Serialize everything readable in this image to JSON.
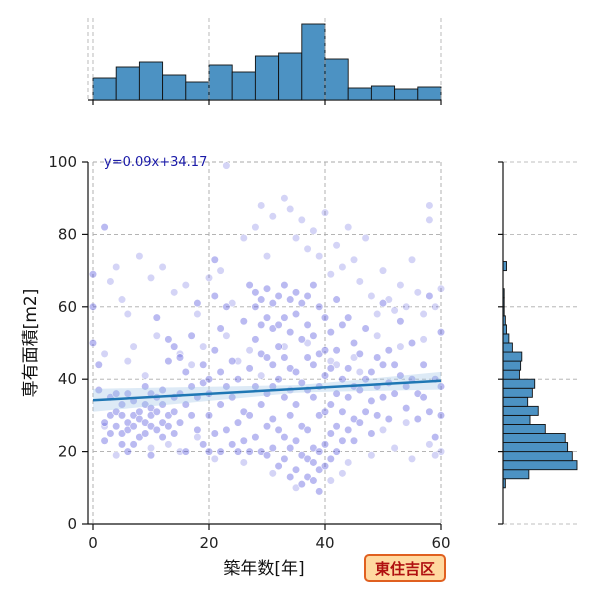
{
  "chart_data": {
    "type": "scatter",
    "xlabel": "築年数[年]",
    "ylabel": "専有面積[m2]",
    "xlim": [
      0,
      60
    ],
    "ylim": [
      0,
      100
    ],
    "xticks": [
      "0",
      "20",
      "40",
      "60"
    ],
    "yticks": [
      "0",
      "20",
      "40",
      "60",
      "80",
      "100"
    ],
    "grid": true,
    "regression": {
      "label": "y=0.09x+34.17",
      "slope": 0.09,
      "intercept": 34.17,
      "color": "#1f77b4"
    },
    "badge": "東住吉区",
    "colors": {
      "point": "#3a3ad6",
      "hist": "#4c92c3",
      "edge": "#111111",
      "badge_bg": "#ffd9a0",
      "badge_border": "#e06020"
    },
    "marginal_x_hist": {
      "bin_edges": [
        0,
        4,
        8,
        12,
        16,
        20,
        24,
        28,
        32,
        36,
        40,
        44,
        48,
        52,
        56,
        60
      ],
      "counts": [
        22,
        33,
        38,
        25,
        18,
        35,
        28,
        44,
        47,
        76,
        41,
        12,
        14,
        11,
        13
      ]
    },
    "marginal_y_hist": {
      "bin_edges": [
        10,
        12.5,
        15,
        17.5,
        20,
        22.5,
        25,
        27.5,
        30,
        32.5,
        35,
        37.5,
        40,
        42.5,
        45,
        47.5,
        50,
        52.5,
        55,
        57.5,
        60,
        62.5,
        65,
        67.5,
        70,
        72.5,
        75,
        77.5,
        80,
        82.5,
        85
      ],
      "counts": [
        2,
        22,
        63,
        59,
        55,
        53,
        36,
        23,
        30,
        21,
        25,
        27,
        14,
        15,
        16,
        8,
        5,
        3,
        2,
        1,
        1,
        1,
        0,
        0,
        3,
        0,
        0,
        0,
        0,
        0
      ]
    },
    "points": [
      [
        0,
        69
      ],
      [
        0,
        60
      ],
      [
        0,
        50
      ],
      [
        1,
        37
      ],
      [
        1,
        44
      ],
      [
        2,
        82
      ],
      [
        2,
        23
      ],
      [
        2,
        28
      ],
      [
        3,
        30
      ],
      [
        3,
        35
      ],
      [
        3,
        25
      ],
      [
        4,
        31
      ],
      [
        4,
        36
      ],
      [
        4,
        27
      ],
      [
        5,
        30
      ],
      [
        5,
        25
      ],
      [
        5,
        22
      ],
      [
        5,
        33
      ],
      [
        6,
        28
      ],
      [
        6,
        36
      ],
      [
        6,
        26
      ],
      [
        6,
        20
      ],
      [
        7,
        34
      ],
      [
        7,
        30
      ],
      [
        7,
        27
      ],
      [
        7,
        22
      ],
      [
        8,
        31
      ],
      [
        8,
        29
      ],
      [
        8,
        24
      ],
      [
        9,
        38
      ],
      [
        9,
        33
      ],
      [
        9,
        28
      ],
      [
        9,
        25
      ],
      [
        10,
        36
      ],
      [
        10,
        32
      ],
      [
        10,
        30
      ],
      [
        10,
        27
      ],
      [
        10,
        19
      ],
      [
        11,
        35
      ],
      [
        11,
        31
      ],
      [
        11,
        26
      ],
      [
        11,
        57
      ],
      [
        12,
        37
      ],
      [
        12,
        33
      ],
      [
        12,
        28
      ],
      [
        12,
        24
      ],
      [
        13,
        30
      ],
      [
        13,
        27
      ],
      [
        13,
        45
      ],
      [
        13,
        51
      ],
      [
        14,
        35
      ],
      [
        14,
        31
      ],
      [
        14,
        25
      ],
      [
        14,
        49
      ],
      [
        15,
        36
      ],
      [
        15,
        46
      ],
      [
        15,
        28
      ],
      [
        16,
        33
      ],
      [
        16,
        20
      ],
      [
        16,
        42
      ],
      [
        17,
        52
      ],
      [
        17,
        30
      ],
      [
        17,
        38
      ],
      [
        18,
        26
      ],
      [
        18,
        35
      ],
      [
        18,
        61
      ],
      [
        19,
        22
      ],
      [
        19,
        39
      ],
      [
        19,
        44
      ],
      [
        20,
        40
      ],
      [
        20,
        36
      ],
      [
        20,
        30
      ],
      [
        20,
        20
      ],
      [
        21,
        73
      ],
      [
        21,
        63
      ],
      [
        21,
        48
      ],
      [
        21,
        25
      ],
      [
        22,
        54
      ],
      [
        22,
        42
      ],
      [
        22,
        33
      ],
      [
        22,
        20
      ],
      [
        23,
        38
      ],
      [
        23,
        26
      ],
      [
        23,
        60
      ],
      [
        24,
        35
      ],
      [
        24,
        22
      ],
      [
        24,
        45
      ],
      [
        25,
        28
      ],
      [
        25,
        20
      ],
      [
        25,
        40
      ],
      [
        26,
        31
      ],
      [
        26,
        56
      ],
      [
        26,
        23
      ],
      [
        27,
        43
      ],
      [
        27,
        30
      ],
      [
        27,
        20
      ],
      [
        27,
        66
      ],
      [
        28,
        64
      ],
      [
        28,
        60
      ],
      [
        28,
        51
      ],
      [
        28,
        38
      ],
      [
        28,
        24
      ],
      [
        29,
        62
      ],
      [
        29,
        55
      ],
      [
        29,
        47
      ],
      [
        29,
        33
      ],
      [
        29,
        20
      ],
      [
        30,
        65
      ],
      [
        30,
        57
      ],
      [
        30,
        46
      ],
      [
        30,
        36
      ],
      [
        30,
        27
      ],
      [
        30,
        19
      ],
      [
        31,
        61
      ],
      [
        31,
        54
      ],
      [
        31,
        44
      ],
      [
        31,
        38
      ],
      [
        31,
        29
      ],
      [
        31,
        21
      ],
      [
        32,
        63
      ],
      [
        32,
        55
      ],
      [
        32,
        49
      ],
      [
        32,
        40
      ],
      [
        32,
        26
      ],
      [
        32,
        16
      ],
      [
        33,
        66
      ],
      [
        33,
        57
      ],
      [
        33,
        46
      ],
      [
        33,
        35
      ],
      [
        33,
        24
      ],
      [
        33,
        18
      ],
      [
        34,
        62
      ],
      [
        34,
        53
      ],
      [
        34,
        43
      ],
      [
        34,
        30
      ],
      [
        34,
        21
      ],
      [
        34,
        13
      ],
      [
        35,
        64
      ],
      [
        35,
        58
      ],
      [
        35,
        42
      ],
      [
        35,
        33
      ],
      [
        35,
        23
      ],
      [
        35,
        15
      ],
      [
        36,
        61
      ],
      [
        36,
        51
      ],
      [
        36,
        39
      ],
      [
        36,
        27
      ],
      [
        36,
        19
      ],
      [
        36,
        11
      ],
      [
        37,
        63
      ],
      [
        37,
        55
      ],
      [
        37,
        46
      ],
      [
        37,
        37
      ],
      [
        37,
        26
      ],
      [
        37,
        18
      ],
      [
        37,
        13
      ],
      [
        38,
        66
      ],
      [
        38,
        52
      ],
      [
        38,
        44
      ],
      [
        38,
        35
      ],
      [
        38,
        21
      ],
      [
        38,
        17
      ],
      [
        38,
        12
      ],
      [
        39,
        60
      ],
      [
        39,
        47
      ],
      [
        39,
        38
      ],
      [
        39,
        30
      ],
      [
        39,
        20
      ],
      [
        39,
        15
      ],
      [
        39,
        9
      ],
      [
        40,
        57
      ],
      [
        40,
        48
      ],
      [
        40,
        41
      ],
      [
        40,
        31
      ],
      [
        40,
        22
      ],
      [
        40,
        16
      ],
      [
        41,
        53
      ],
      [
        41,
        43
      ],
      [
        41,
        33
      ],
      [
        41,
        25
      ],
      [
        41,
        18
      ],
      [
        42,
        62
      ],
      [
        42,
        48
      ],
      [
        42,
        36
      ],
      [
        42,
        27
      ],
      [
        42,
        20
      ],
      [
        43,
        55
      ],
      [
        43,
        40
      ],
      [
        43,
        31
      ],
      [
        43,
        23
      ],
      [
        44,
        57
      ],
      [
        44,
        43
      ],
      [
        44,
        35
      ],
      [
        44,
        26
      ],
      [
        45,
        50
      ],
      [
        45,
        38
      ],
      [
        45,
        29
      ],
      [
        45,
        23
      ],
      [
        46,
        47
      ],
      [
        46,
        37
      ],
      [
        46,
        28
      ],
      [
        47,
        54
      ],
      [
        47,
        40
      ],
      [
        47,
        31
      ],
      [
        48,
        42
      ],
      [
        48,
        34
      ],
      [
        48,
        25
      ],
      [
        49,
        46
      ],
      [
        49,
        38
      ],
      [
        49,
        30
      ],
      [
        50,
        61
      ],
      [
        50,
        44
      ],
      [
        50,
        35
      ],
      [
        51,
        48
      ],
      [
        51,
        39
      ],
      [
        51,
        29
      ],
      [
        52,
        44
      ],
      [
        52,
        36
      ],
      [
        53,
        56
      ],
      [
        53,
        41
      ],
      [
        54,
        38
      ],
      [
        54,
        32
      ],
      [
        55,
        50
      ],
      [
        55,
        40
      ],
      [
        56,
        36
      ],
      [
        56,
        29
      ],
      [
        57,
        44
      ],
      [
        57,
        35
      ],
      [
        58,
        63
      ],
      [
        58,
        31
      ],
      [
        59,
        40
      ],
      [
        59,
        24
      ],
      [
        60,
        53
      ],
      [
        60,
        38
      ],
      [
        60,
        30
      ]
    ],
    "faint_points": [
      [
        3,
        67
      ],
      [
        4,
        71
      ],
      [
        5,
        62
      ],
      [
        6,
        58
      ],
      [
        8,
        74
      ],
      [
        10,
        68
      ],
      [
        12,
        71
      ],
      [
        14,
        64
      ],
      [
        16,
        66
      ],
      [
        18,
        58
      ],
      [
        20,
        68
      ],
      [
        22,
        70
      ],
      [
        24,
        61
      ],
      [
        26,
        79
      ],
      [
        28,
        82
      ],
      [
        29,
        88
      ],
      [
        30,
        74
      ],
      [
        31,
        85
      ],
      [
        33,
        90
      ],
      [
        34,
        87
      ],
      [
        35,
        79
      ],
      [
        36,
        84
      ],
      [
        37,
        76
      ],
      [
        38,
        81
      ],
      [
        39,
        74
      ],
      [
        40,
        86
      ],
      [
        41,
        69
      ],
      [
        42,
        77
      ],
      [
        43,
        71
      ],
      [
        44,
        82
      ],
      [
        45,
        73
      ],
      [
        46,
        67
      ],
      [
        47,
        79
      ],
      [
        48,
        63
      ],
      [
        49,
        58
      ],
      [
        50,
        70
      ],
      [
        51,
        62
      ],
      [
        52,
        59
      ],
      [
        53,
        66
      ],
      [
        54,
        60
      ],
      [
        55,
        73
      ],
      [
        56,
        64
      ],
      [
        57,
        58
      ],
      [
        58,
        84
      ],
      [
        58,
        88
      ],
      [
        59,
        60
      ],
      [
        60,
        65
      ],
      [
        2,
        47
      ],
      [
        7,
        49
      ],
      [
        11,
        52
      ],
      [
        15,
        47
      ],
      [
        19,
        49
      ],
      [
        23,
        52
      ],
      [
        27,
        48
      ],
      [
        29,
        41
      ],
      [
        33,
        49
      ],
      [
        37,
        50
      ],
      [
        41,
        45
      ],
      [
        45,
        46
      ],
      [
        49,
        52
      ],
      [
        53,
        49
      ],
      [
        57,
        51
      ],
      [
        23,
        99
      ],
      [
        6,
        45
      ],
      [
        9,
        41
      ],
      [
        17,
        44
      ],
      [
        25,
        45
      ],
      [
        34,
        37
      ],
      [
        42,
        44
      ],
      [
        46,
        42
      ],
      [
        50,
        26
      ],
      [
        54,
        28
      ],
      [
        58,
        22
      ],
      [
        60,
        20
      ],
      [
        59,
        19
      ],
      [
        55,
        18
      ],
      [
        52,
        21
      ],
      [
        48,
        19
      ],
      [
        44,
        17
      ],
      [
        26,
        17
      ],
      [
        21,
        18
      ],
      [
        15,
        20
      ],
      [
        10,
        21
      ],
      [
        2,
        27
      ],
      [
        4,
        19
      ],
      [
        13,
        22
      ],
      [
        18,
        24
      ],
      [
        31,
        14
      ],
      [
        35,
        10
      ],
      [
        41,
        12
      ],
      [
        43,
        14
      ]
    ]
  }
}
